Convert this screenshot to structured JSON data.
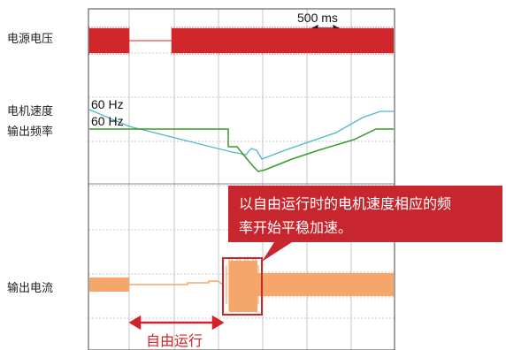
{
  "labels": {
    "voltage": "电源电压",
    "speed_line1": "电机速度",
    "speed_line2": "输出频率",
    "current": "输出电流"
  },
  "scale_bar_label": "500 ms",
  "callout": {
    "line1": "以自由运行时的电机速度相应的频",
    "line2": "率开始平稳加速。"
  },
  "coast_label": "自由运行",
  "colors": {
    "voltage": "#d1262b",
    "speed": "#4db8c8",
    "frequency": "#3a9a2a",
    "current": "#f5a66a",
    "callout_bg": "#c8262e",
    "annotation": "#d2232a",
    "grid": "#b8b8b8"
  },
  "chart_data": {
    "type": "line",
    "time_scale": "500 ms",
    "series": [
      {
        "name": "电源电压"
      },
      {
        "name": "电机速度",
        "start_label": "60 Hz"
      },
      {
        "name": "输出频率",
        "start_label": "60 Hz"
      },
      {
        "name": "输出电流"
      }
    ]
  }
}
